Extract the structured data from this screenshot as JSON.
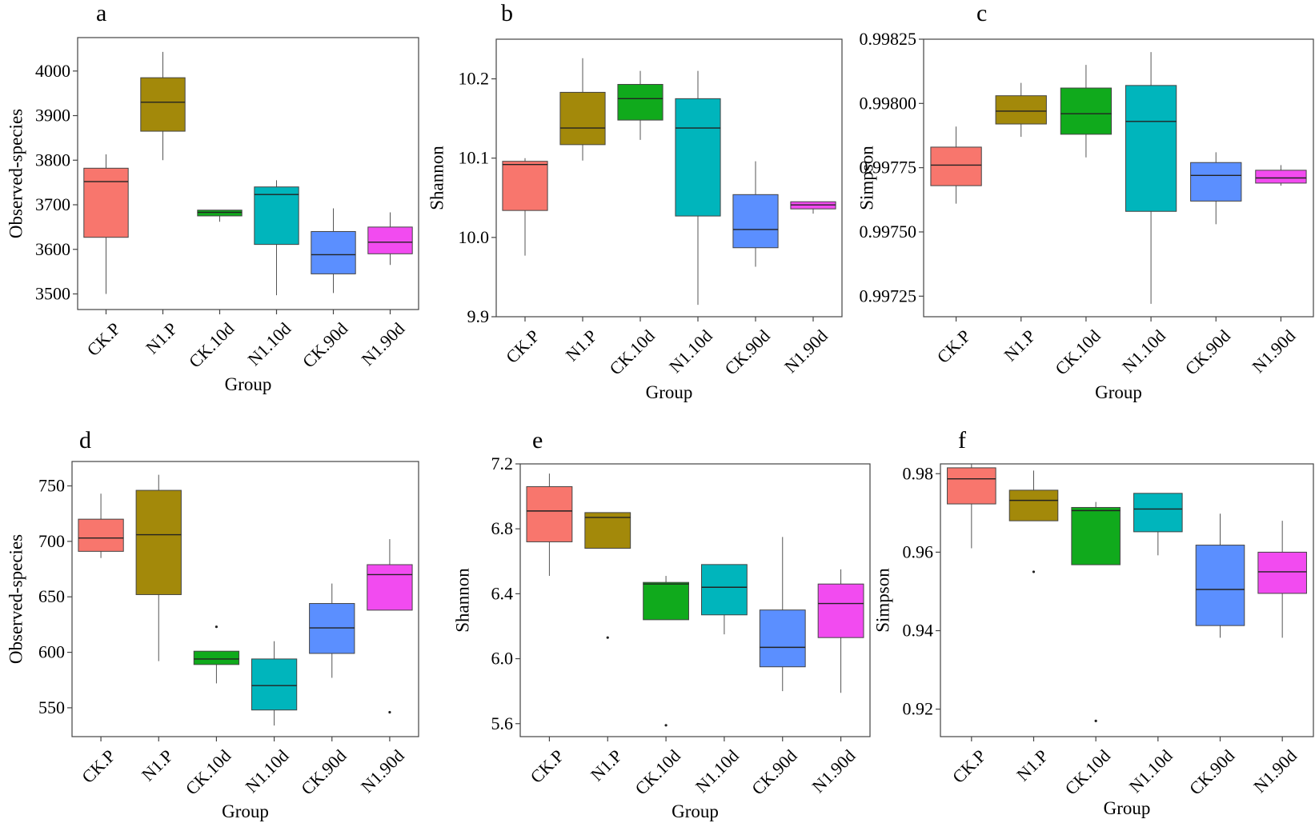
{
  "colors": {
    "CK.P": "#F8766D",
    "N1.P": "#A3890A",
    "CK.10d": "#10AA1C",
    "N1.10d": "#00B5BC",
    "CK.90d": "#5B8FFF",
    "N1.90d": "#F24BF0"
  },
  "chart_data": [
    {
      "type": "box",
      "panel": "a",
      "xlabel": "Group",
      "ylabel": "Observed-species",
      "categories": [
        "CK.P",
        "N1.P",
        "CK.10d",
        "N1.10d",
        "CK.90d",
        "N1.90d"
      ],
      "ylim": [
        3465,
        4075
      ],
      "yticks": [
        3500,
        3600,
        3700,
        3800,
        3900,
        4000
      ],
      "ytick_labels": [
        "3500",
        "3600",
        "3700",
        "3800",
        "3900",
        "4000"
      ],
      "boxes": [
        {
          "group": "CK.P",
          "min": 3500,
          "q1": 3627,
          "median": 3752,
          "q3": 3782,
          "max": 3813,
          "outliers": []
        },
        {
          "group": "N1.P",
          "min": 3800,
          "q1": 3865,
          "median": 3930,
          "q3": 3985,
          "max": 4043,
          "outliers": []
        },
        {
          "group": "CK.10d",
          "min": 3662,
          "q1": 3675,
          "median": 3683,
          "q3": 3688,
          "max": 3688,
          "outliers": []
        },
        {
          "group": "N1.10d",
          "min": 3497,
          "q1": 3611,
          "median": 3723,
          "q3": 3740,
          "max": 3755,
          "outliers": []
        },
        {
          "group": "CK.90d",
          "min": 3502,
          "q1": 3545,
          "median": 3588,
          "q3": 3640,
          "max": 3692,
          "outliers": []
        },
        {
          "group": "N1.90d",
          "min": 3565,
          "q1": 3590,
          "median": 3616,
          "q3": 3650,
          "max": 3683,
          "outliers": []
        }
      ]
    },
    {
      "type": "box",
      "panel": "b",
      "xlabel": "Group",
      "ylabel": "Shannon",
      "categories": [
        "CK.P",
        "N1.P",
        "CK.10d",
        "N1.10d",
        "CK.90d",
        "N1.90d"
      ],
      "ylim": [
        9.9,
        10.25
      ],
      "yticks": [
        9.9,
        10.0,
        10.1,
        10.2
      ],
      "ytick_labels": [
        "9.9",
        "10.0",
        "10.1",
        "10.2"
      ],
      "boxes": [
        {
          "group": "CK.P",
          "min": 9.977,
          "q1": 10.034,
          "median": 10.092,
          "q3": 10.096,
          "max": 10.1,
          "outliers": []
        },
        {
          "group": "N1.P",
          "min": 10.097,
          "q1": 10.117,
          "median": 10.138,
          "q3": 10.183,
          "max": 10.226,
          "outliers": []
        },
        {
          "group": "CK.10d",
          "min": 10.123,
          "q1": 10.148,
          "median": 10.175,
          "q3": 10.193,
          "max": 10.21,
          "outliers": []
        },
        {
          "group": "N1.10d",
          "min": 9.915,
          "q1": 10.027,
          "median": 10.138,
          "q3": 10.175,
          "max": 10.21,
          "outliers": []
        },
        {
          "group": "CK.90d",
          "min": 9.963,
          "q1": 9.987,
          "median": 10.01,
          "q3": 10.054,
          "max": 10.096,
          "outliers": []
        },
        {
          "group": "N1.90d",
          "min": 10.03,
          "q1": 10.036,
          "median": 10.041,
          "q3": 10.045,
          "max": 10.045,
          "outliers": []
        }
      ]
    },
    {
      "type": "box",
      "panel": "c",
      "xlabel": "Group",
      "ylabel": "Simpson",
      "categories": [
        "CK.P",
        "N1.P",
        "CK.10d",
        "N1.10d",
        "CK.90d",
        "N1.90d"
      ],
      "ylim": [
        0.99717,
        0.99825
      ],
      "yticks": [
        0.99725,
        0.9975,
        0.99775,
        0.998,
        0.99825
      ],
      "ytick_labels": [
        "0.99725",
        "0.99750",
        "0.99775",
        "0.99800",
        "0.99825"
      ],
      "boxes": [
        {
          "group": "CK.P",
          "min": 0.99761,
          "q1": 0.99768,
          "median": 0.99776,
          "q3": 0.99783,
          "max": 0.99791,
          "outliers": []
        },
        {
          "group": "N1.P",
          "min": 0.99787,
          "q1": 0.99792,
          "median": 0.99797,
          "q3": 0.99803,
          "max": 0.99808,
          "outliers": []
        },
        {
          "group": "CK.10d",
          "min": 0.99779,
          "q1": 0.99788,
          "median": 0.99796,
          "q3": 0.99806,
          "max": 0.99815,
          "outliers": []
        },
        {
          "group": "N1.10d",
          "min": 0.99722,
          "q1": 0.99758,
          "median": 0.99793,
          "q3": 0.99807,
          "max": 0.9982,
          "outliers": []
        },
        {
          "group": "CK.90d",
          "min": 0.99753,
          "q1": 0.99762,
          "median": 0.99772,
          "q3": 0.99777,
          "max": 0.99781,
          "outliers": []
        },
        {
          "group": "N1.90d",
          "min": 0.99768,
          "q1": 0.99769,
          "median": 0.99771,
          "q3": 0.99774,
          "max": 0.99776,
          "outliers": []
        }
      ]
    },
    {
      "type": "box",
      "panel": "d",
      "xlabel": "Group",
      "ylabel": "Observed-species",
      "categories": [
        "CK.P",
        "N1.P",
        "CK.10d",
        "N1.10d",
        "CK.90d",
        "N1.90d"
      ],
      "ylim": [
        524,
        772
      ],
      "yticks": [
        550,
        600,
        650,
        700,
        750
      ],
      "ytick_labels": [
        "550",
        "600",
        "650",
        "700",
        "750"
      ],
      "boxes": [
        {
          "group": "CK.P",
          "min": 685,
          "q1": 691,
          "median": 703,
          "q3": 720,
          "max": 743,
          "outliers": []
        },
        {
          "group": "N1.P",
          "min": 592,
          "q1": 652,
          "median": 706,
          "q3": 746,
          "max": 760,
          "outliers": []
        },
        {
          "group": "CK.10d",
          "min": 572,
          "q1": 589,
          "median": 594,
          "q3": 601,
          "max": 601,
          "outliers": [
            623
          ]
        },
        {
          "group": "N1.10d",
          "min": 534,
          "q1": 548,
          "median": 570,
          "q3": 594,
          "max": 610,
          "outliers": []
        },
        {
          "group": "CK.90d",
          "min": 577,
          "q1": 599,
          "median": 622,
          "q3": 644,
          "max": 662,
          "outliers": []
        },
        {
          "group": "N1.90d",
          "min": 638,
          "q1": 638,
          "median": 670,
          "q3": 679,
          "max": 702,
          "outliers": [
            546
          ]
        }
      ]
    },
    {
      "type": "box",
      "panel": "e",
      "xlabel": "Group",
      "ylabel": "Shannon",
      "categories": [
        "CK.P",
        "N1.P",
        "CK.10d",
        "N1.10d",
        "CK.90d",
        "N1.90d"
      ],
      "ylim": [
        5.52,
        7.2
      ],
      "yticks": [
        5.6,
        6.0,
        6.4,
        6.8,
        7.2
      ],
      "ytick_labels": [
        "5.6",
        "6.0",
        "6.4",
        "6.8",
        "7.2"
      ],
      "boxes": [
        {
          "group": "CK.P",
          "min": 6.51,
          "q1": 6.72,
          "median": 6.91,
          "q3": 7.06,
          "max": 7.14,
          "outliers": []
        },
        {
          "group": "N1.P",
          "min": 6.68,
          "q1": 6.68,
          "median": 6.87,
          "q3": 6.9,
          "max": 6.9,
          "outliers": [
            6.13
          ]
        },
        {
          "group": "CK.10d",
          "min": 6.24,
          "q1": 6.24,
          "median": 6.46,
          "q3": 6.47,
          "max": 6.51,
          "outliers": [
            5.59
          ]
        },
        {
          "group": "N1.10d",
          "min": 6.15,
          "q1": 6.27,
          "median": 6.44,
          "q3": 6.58,
          "max": 6.58,
          "outliers": []
        },
        {
          "group": "CK.90d",
          "min": 5.8,
          "q1": 5.95,
          "median": 6.07,
          "q3": 6.3,
          "max": 6.75,
          "outliers": []
        },
        {
          "group": "N1.90d",
          "min": 5.79,
          "q1": 6.13,
          "median": 6.34,
          "q3": 6.46,
          "max": 6.55,
          "outliers": []
        }
      ]
    },
    {
      "type": "box",
      "panel": "f",
      "xlabel": "Group",
      "ylabel": "Simpson",
      "categories": [
        "CK.P",
        "N1.P",
        "CK.10d",
        "N1.10d",
        "CK.90d",
        "N1.90d"
      ],
      "ylim": [
        0.913,
        0.9825
      ],
      "yticks": [
        0.92,
        0.94,
        0.96,
        0.98
      ],
      "ytick_labels": [
        "0.92",
        "0.94",
        "0.96",
        "0.98"
      ],
      "boxes": [
        {
          "group": "CK.P",
          "min": 0.961,
          "q1": 0.9723,
          "median": 0.9787,
          "q3": 0.9815,
          "max": 0.9825,
          "outliers": []
        },
        {
          "group": "N1.P",
          "min": 0.968,
          "q1": 0.968,
          "median": 0.9732,
          "q3": 0.9758,
          "max": 0.9808,
          "outliers": [
            0.955
          ]
        },
        {
          "group": "CK.10d",
          "min": 0.9568,
          "q1": 0.9568,
          "median": 0.9706,
          "q3": 0.9714,
          "max": 0.9728,
          "outliers": [
            0.917
          ]
        },
        {
          "group": "N1.10d",
          "min": 0.9592,
          "q1": 0.9652,
          "median": 0.971,
          "q3": 0.975,
          "max": 0.975,
          "outliers": []
        },
        {
          "group": "CK.90d",
          "min": 0.9382,
          "q1": 0.9413,
          "median": 0.9505,
          "q3": 0.9618,
          "max": 0.9698,
          "outliers": []
        },
        {
          "group": "N1.90d",
          "min": 0.9382,
          "q1": 0.9495,
          "median": 0.955,
          "q3": 0.96,
          "max": 0.968,
          "outliers": []
        }
      ]
    }
  ]
}
